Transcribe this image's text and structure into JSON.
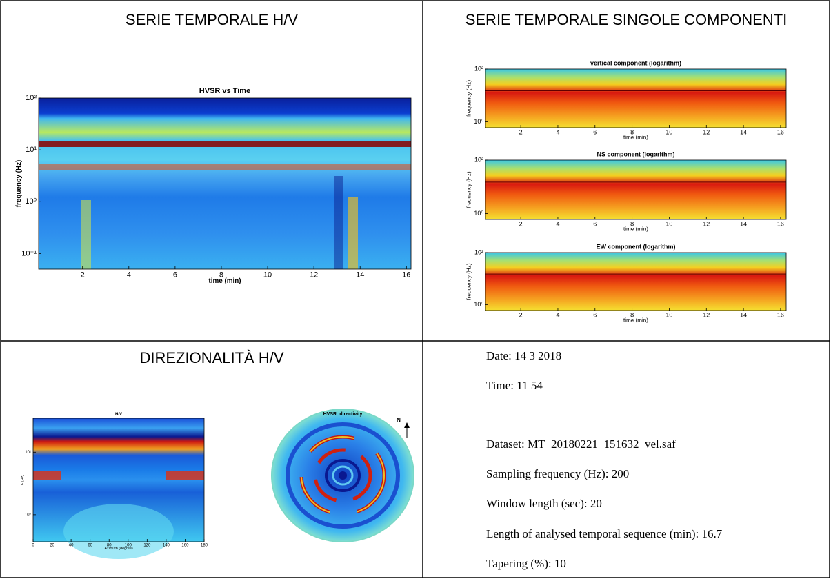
{
  "sections": {
    "hv_time_title": "SERIE TEMPORALE H/V",
    "components_title": "SERIE TEMPORALE SINGOLE COMPONENTI",
    "directivity_title": "DIREZIONALITÀ H/V"
  },
  "hvsr_time": {
    "title": "HVSR vs Time",
    "xlabel": "time (min)",
    "ylabel": "frequency (Hz)",
    "xlim": [
      0.1,
      16.2
    ],
    "ylim": [
      0.05,
      100
    ],
    "log_y": true,
    "xticks": [
      2,
      4,
      6,
      8,
      10,
      12,
      14,
      16
    ],
    "yticks": [
      {
        "value": 100,
        "label": "10²"
      },
      {
        "value": 10,
        "label": "10¹"
      },
      {
        "value": 1,
        "label": "10⁰"
      },
      {
        "value": 0.1,
        "label": "10⁻¹"
      }
    ]
  },
  "components": [
    {
      "title": "vertical component (logarithm)",
      "xlabel": "time (min)",
      "ylabel": "frequency (Hz)",
      "xlim": [
        0.1,
        16.3
      ],
      "ylim": [
        0.6,
        100
      ],
      "log_y": true,
      "xticks": [
        2,
        4,
        6,
        8,
        10,
        12,
        14,
        16
      ],
      "yticks": [
        {
          "value": 100,
          "label": "10²"
        },
        {
          "value": 1,
          "label": "10⁰"
        }
      ]
    },
    {
      "title": "NS component (logarithm)",
      "xlabel": "time (min)",
      "ylabel": "frequency (Hz)",
      "xlim": [
        0.1,
        16.3
      ],
      "ylim": [
        0.6,
        100
      ],
      "log_y": true,
      "xticks": [
        2,
        4,
        6,
        8,
        10,
        12,
        14,
        16
      ],
      "yticks": [
        {
          "value": 100,
          "label": "10²"
        },
        {
          "value": 1,
          "label": "10⁰"
        }
      ]
    },
    {
      "title": "EW component (logarithm)",
      "xlabel": "time (min)",
      "ylabel": "frequency (Hz)",
      "xlim": [
        0.1,
        16.3
      ],
      "ylim": [
        0.6,
        100
      ],
      "log_y": true,
      "xticks": [
        2,
        4,
        6,
        8,
        10,
        12,
        14,
        16
      ],
      "yticks": [
        {
          "value": 100,
          "label": "10²"
        },
        {
          "value": 1,
          "label": "10⁰"
        }
      ]
    }
  ],
  "hv_azimuth": {
    "title": "H/V",
    "xlabel": "Azimuth (degree)",
    "ylabel": "F (Hz)",
    "xlim": [
      0,
      180
    ],
    "ylim": [
      0.37,
      35
    ],
    "log_y": true,
    "xticks": [
      0,
      20,
      40,
      60,
      80,
      100,
      120,
      140,
      160,
      180
    ],
    "yticks": [
      {
        "value": 10,
        "label": "10¹"
      },
      {
        "value": 1,
        "label": "10⁰"
      }
    ]
  },
  "directivity": {
    "title": "HVSR: directivity",
    "north": "N"
  },
  "info": [
    "Date: 14 3 2018",
    "Time: 11 54",
    "Dataset: MT_20180221_151632_vel.saf",
    "Sampling frequency (Hz): 200",
    "Window length (sec): 20",
    "Length of analysed temporal sequence (min): 16.7",
    "Tapering (%): 10"
  ]
}
